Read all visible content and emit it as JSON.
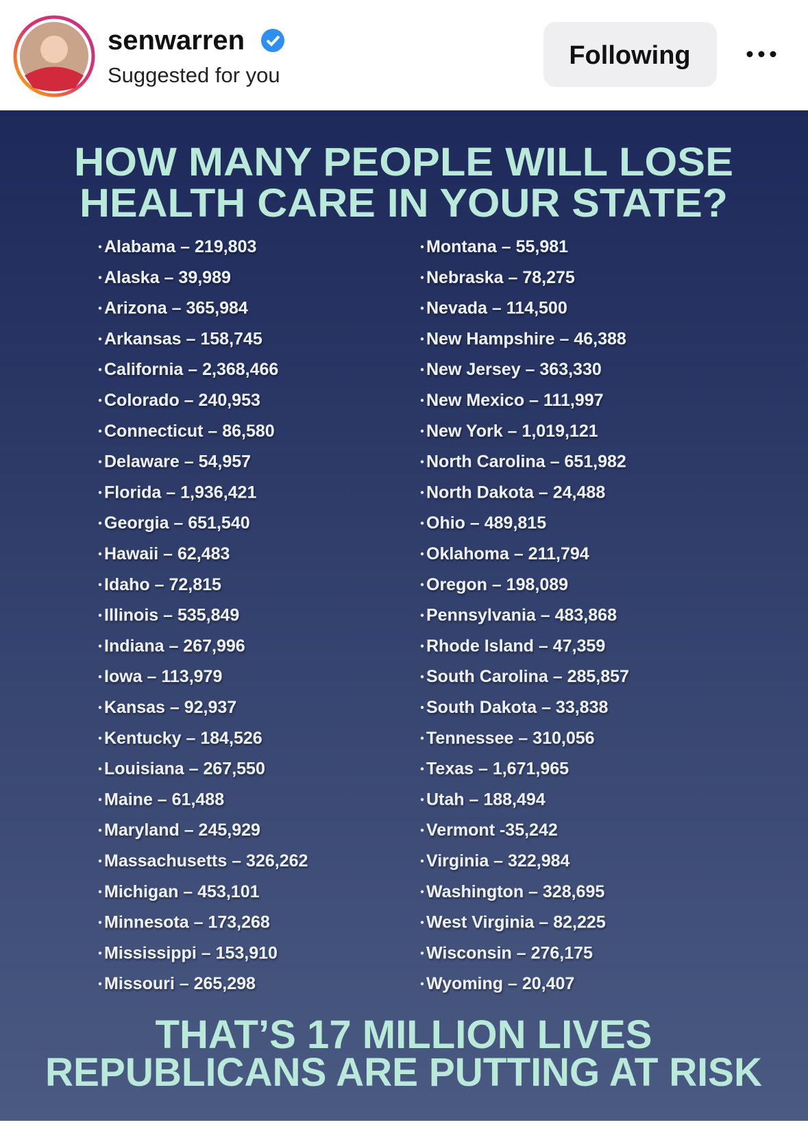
{
  "header": {
    "username": "senwarren",
    "subtitle": "Suggested for you",
    "button": "Following"
  },
  "post": {
    "title_lines": [
      "HOW MANY PEOPLE WILL LOSE",
      "HEALTH CARE IN YOUR STATE?"
    ],
    "left": [
      "Alabama – 219,803",
      "Alaska – 39,989",
      "Arizona – 365,984",
      "Arkansas – 158,745",
      "California – 2,368,466",
      "Colorado – 240,953",
      "Connecticut – 86,580",
      "Delaware – 54,957",
      "Florida – 1,936,421",
      "Georgia – 651,540",
      "Hawaii – 62,483",
      "Idaho – 72,815",
      "Illinois – 535,849",
      "Indiana – 267,996",
      "Iowa – 113,979",
      "Kansas – 92,937",
      "Kentucky – 184,526",
      "Louisiana – 267,550",
      "Maine – 61,488",
      "Maryland – 245,929",
      "Massachusetts – 326,262",
      "Michigan – 453,101",
      "Minnesota – 173,268",
      "Mississippi – 153,910",
      "Missouri – 265,298"
    ],
    "right": [
      "Montana – 55,981",
      "Nebraska – 78,275",
      "Nevada – 114,500",
      "New Hampshire – 46,388",
      "New Jersey – 363,330",
      "New Mexico – 111,997",
      "New York – 1,019,121",
      "North Carolina – 651,982",
      "North Dakota – 24,488",
      "Ohio – 489,815",
      "Oklahoma – 211,794",
      "Oregon – 198,089",
      "Pennsylvania – 483,868",
      "Rhode Island – 47,359",
      "South Carolina – 285,857",
      "South Dakota – 33,838",
      "Tennessee – 310,056",
      "Texas – 1,671,965",
      "Utah – 188,494",
      "Vermont -35,242",
      "Virginia – 322,984",
      "Washington – 328,695",
      "West Virginia – 82,225",
      "Wisconsin – 276,175",
      "Wyoming – 20,407"
    ],
    "footer_lines": [
      "THAT’S 17 MILLION LIVES",
      "REPUBLICANS ARE PUTTING AT RISK"
    ]
  }
}
